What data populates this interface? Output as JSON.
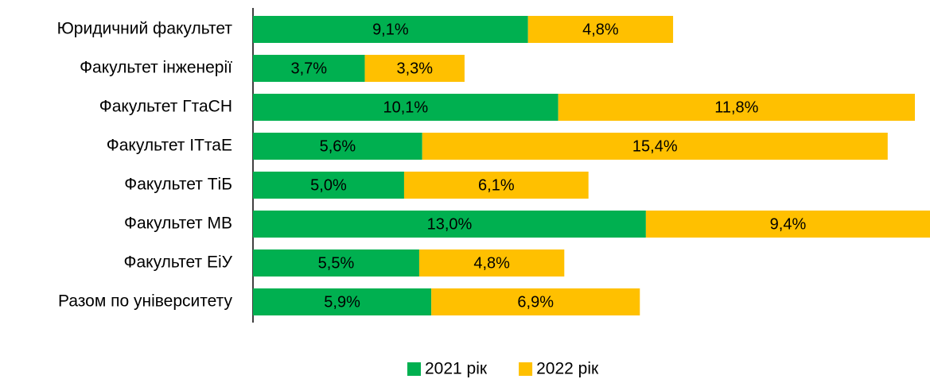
{
  "chart_data": {
    "type": "bar",
    "orientation": "horizontal",
    "stacked": true,
    "categories": [
      "Юридичний факультет",
      "Факультет інженерії",
      "Факультет ГтаСН",
      "Факультет ІТтаЕ",
      "Факультет ТіБ",
      "Факультет МВ",
      "Факультет ЕіУ",
      "Разом по університету"
    ],
    "series": [
      {
        "name": "2021 рік",
        "color": "#00b050",
        "values": [
          9.1,
          3.7,
          10.1,
          5.6,
          5.0,
          13.0,
          5.5,
          5.9
        ],
        "value_labels": [
          "9,1%",
          "3,7%",
          "10,1%",
          "5,6%",
          "5,0%",
          "13,0%",
          "5,5%",
          "5,9%"
        ]
      },
      {
        "name": "2022 рік",
        "color": "#ffc000",
        "values": [
          4.8,
          3.3,
          11.8,
          15.4,
          6.1,
          9.4,
          4.8,
          6.9
        ],
        "value_labels": [
          "4,8%",
          "3,3%",
          "11,8%",
          "15,4%",
          "6,1%",
          "9,4%",
          "4,8%",
          "6,9%"
        ]
      }
    ],
    "legend": "bottom"
  }
}
